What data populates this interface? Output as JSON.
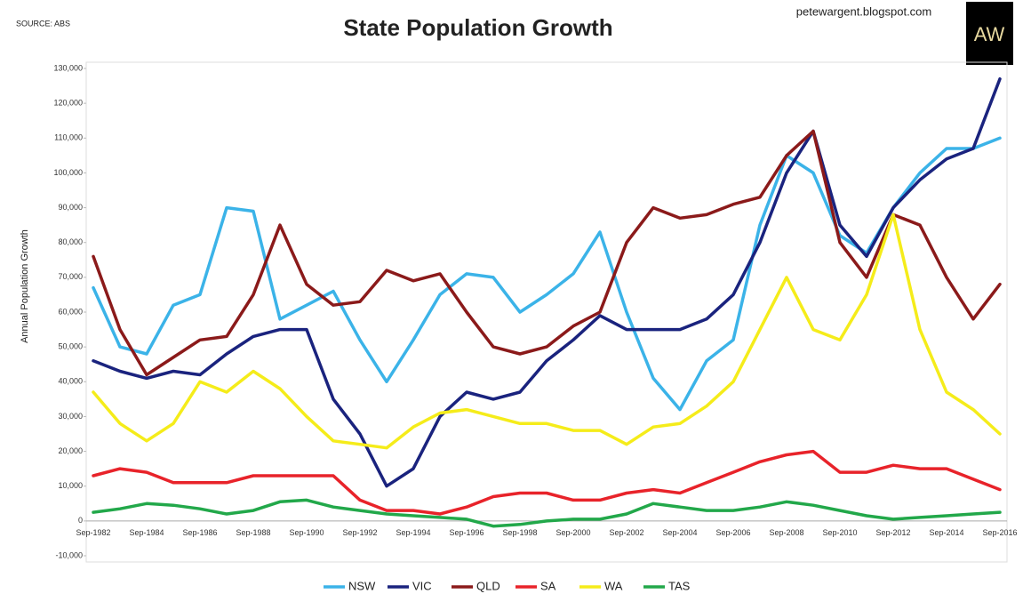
{
  "chart_data": {
    "type": "line",
    "title": "State Population Growth",
    "source": "SOURCE: ABS",
    "website": "petewargent.blogspot.com",
    "logo": "AW",
    "y_label": "Annual Population Growth",
    "categories": [
      "Sep-1982",
      null,
      "Sep-1984",
      null,
      "Sep-1986",
      null,
      "Sep-1988",
      null,
      "Sep-1990",
      null,
      "Sep-1992",
      null,
      "Sep-1994",
      null,
      "Sep-1996",
      null,
      "Sep-1998",
      null,
      "Sep-2000",
      null,
      "Sep-2002",
      null,
      "Sep-2004",
      null,
      "Sep-2006",
      null,
      "Sep-2008",
      null,
      "Sep-2010",
      null,
      "Sep-2012",
      null,
      "Sep-2014",
      null,
      "Sep-2016"
    ],
    "series": [
      {
        "name": "NSW",
        "color": "#3bb3e8",
        "values": [
          67000,
          50000,
          48000,
          62000,
          65000,
          90000,
          89000,
          58000,
          62000,
          66000,
          52000,
          40000,
          52000,
          65000,
          71000,
          70000,
          60000,
          65000,
          71000,
          83000,
          60000,
          41000,
          32000,
          46000,
          52000,
          85000,
          105000,
          100000,
          82000,
          77000,
          90000,
          100000,
          107000,
          107000,
          110000
        ]
      },
      {
        "name": "VIC",
        "color": "#1a237e",
        "values": [
          46000,
          43000,
          41000,
          43000,
          42000,
          48000,
          53000,
          55000,
          55000,
          35000,
          25000,
          10000,
          15000,
          30000,
          37000,
          35000,
          37000,
          46000,
          52000,
          59000,
          55000,
          55000,
          55000,
          58000,
          65000,
          80000,
          100000,
          112000,
          85000,
          76000,
          90000,
          98000,
          104000,
          107000,
          127000
        ]
      },
      {
        "name": "QLD",
        "color": "#8b1a1a",
        "values": [
          76000,
          55000,
          42000,
          47000,
          52000,
          53000,
          65000,
          85000,
          68000,
          62000,
          63000,
          72000,
          69000,
          71000,
          60000,
          50000,
          48000,
          50000,
          56000,
          60000,
          80000,
          90000,
          87000,
          88000,
          91000,
          93000,
          105000,
          112000,
          80000,
          70000,
          88000,
          85000,
          70000,
          58000,
          68000
        ]
      },
      {
        "name": "SA",
        "color": "#e8232a",
        "values": [
          13000,
          15000,
          14000,
          11000,
          11000,
          11000,
          13000,
          13000,
          13000,
          13000,
          6000,
          3000,
          3000,
          2000,
          4000,
          7000,
          8000,
          8000,
          6000,
          6000,
          8000,
          9000,
          8000,
          11000,
          14000,
          17000,
          19000,
          20000,
          14000,
          14000,
          16000,
          15000,
          15000,
          12000,
          9000
        ]
      },
      {
        "name": "WA",
        "color": "#f5ec1a",
        "values": [
          37000,
          28000,
          23000,
          28000,
          40000,
          37000,
          43000,
          38000,
          30000,
          23000,
          22000,
          21000,
          27000,
          31000,
          32000,
          30000,
          28000,
          28000,
          26000,
          26000,
          22000,
          27000,
          28000,
          33000,
          40000,
          55000,
          70000,
          55000,
          52000,
          65000,
          88000,
          55000,
          37000,
          32000,
          25000
        ]
      },
      {
        "name": "TAS",
        "color": "#22a84a",
        "values": [
          2500,
          3500,
          5000,
          4500,
          3500,
          2000,
          3000,
          5500,
          6000,
          4000,
          3000,
          2000,
          1500,
          1000,
          500,
          -1500,
          -1000,
          0,
          500,
          500,
          2000,
          5000,
          4000,
          3000,
          3000,
          4000,
          5500,
          4500,
          3000,
          1500,
          500,
          1000,
          1500,
          2000,
          2500
        ]
      }
    ],
    "ylim": [
      -10000,
      130000
    ],
    "yticks": [
      {
        "value": -10000,
        "label": "-10,000"
      },
      0,
      {
        "value": 10000,
        "label": "10,000"
      },
      {
        "value": 20000,
        "label": "20,000"
      },
      {
        "value": 30000,
        "label": "30,000"
      },
      {
        "value": 40000,
        "label": "40,000"
      },
      {
        "value": 50000,
        "label": "50,000"
      },
      {
        "value": 60000,
        "label": "60,000"
      },
      {
        "value": 70000,
        "label": "70,000"
      },
      {
        "value": 80000,
        "label": "80,000"
      },
      {
        "value": 90000,
        "label": "90,000"
      },
      {
        "value": 100000,
        "label": "100,000"
      },
      {
        "value": 110000,
        "label": "110,000"
      },
      {
        "value": 120000,
        "label": "120,000"
      },
      {
        "value": 130000,
        "label": "130,000"
      }
    ],
    "grid": false,
    "legend": "bottom"
  }
}
